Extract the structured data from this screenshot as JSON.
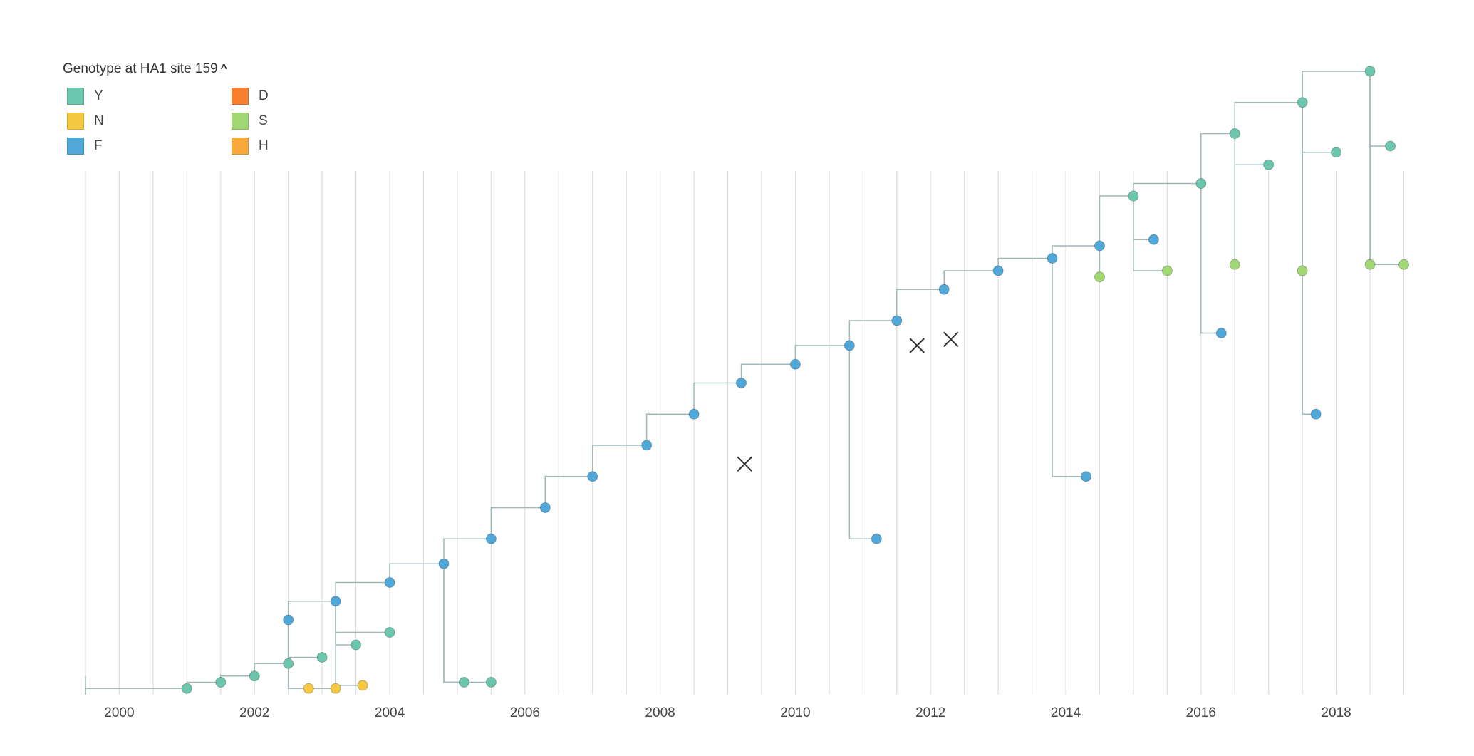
{
  "legend": {
    "title": "Genotype at HA1 site 159",
    "toggle_icon": "chevron-up-icon",
    "items": [
      {
        "label": "Y",
        "color": "#6cc6ae"
      },
      {
        "label": "N",
        "color": "#f5c842"
      },
      {
        "label": "F",
        "color": "#4fa8d8"
      },
      {
        "label": "D",
        "color": "#f97e2e"
      },
      {
        "label": "S",
        "color": "#a2d873"
      },
      {
        "label": "H",
        "color": "#fba83b"
      }
    ]
  },
  "chart_data": {
    "type": "scatter",
    "title": "",
    "xlabel": "",
    "ylabel": "",
    "x_ticks": [
      "2000",
      "2002",
      "2004",
      "2006",
      "2008",
      "2010",
      "2012",
      "2014",
      "2016",
      "2018"
    ],
    "xlim": [
      1999.5,
      2019.1
    ],
    "grid": true,
    "branch_color": "#9fb8b8",
    "series": [
      {
        "name": "Y",
        "points": [
          [
            2001.0,
            0.01
          ],
          [
            2001.5,
            0.02
          ],
          [
            2002.0,
            0.03
          ],
          [
            2002.5,
            0.05
          ],
          [
            2003.0,
            0.06
          ],
          [
            2003.5,
            0.08
          ],
          [
            2004.0,
            0.1
          ],
          [
            2005.1,
            0.02
          ],
          [
            2005.5,
            0.02
          ],
          [
            2015.0,
            0.8
          ],
          [
            2016.0,
            0.82
          ],
          [
            2017.0,
            0.85
          ],
          [
            2018.0,
            0.87
          ],
          [
            2018.8,
            0.88
          ],
          [
            2016.5,
            0.9
          ],
          [
            2017.5,
            0.95
          ],
          [
            2018.5,
            1.0
          ]
        ]
      },
      {
        "name": "N",
        "points": [
          [
            2002.8,
            0.01
          ],
          [
            2003.2,
            0.01
          ],
          [
            2003.6,
            0.015
          ]
        ]
      },
      {
        "name": "F",
        "points": [
          [
            2002.5,
            0.12
          ],
          [
            2003.2,
            0.15
          ],
          [
            2004.0,
            0.18
          ],
          [
            2004.8,
            0.21
          ],
          [
            2005.5,
            0.25
          ],
          [
            2006.3,
            0.3
          ],
          [
            2007.0,
            0.35
          ],
          [
            2007.8,
            0.4
          ],
          [
            2008.5,
            0.45
          ],
          [
            2009.2,
            0.5
          ],
          [
            2010.0,
            0.53
          ],
          [
            2010.8,
            0.56
          ],
          [
            2011.5,
            0.6
          ],
          [
            2012.2,
            0.65
          ],
          [
            2013.0,
            0.68
          ],
          [
            2013.8,
            0.7
          ],
          [
            2014.5,
            0.72
          ],
          [
            2015.3,
            0.73
          ],
          [
            2017.7,
            0.45
          ],
          [
            2014.3,
            0.35
          ],
          [
            2016.3,
            0.58
          ],
          [
            2011.2,
            0.25
          ]
        ]
      },
      {
        "name": "S",
        "points": [
          [
            2014.5,
            0.67
          ],
          [
            2015.5,
            0.68
          ],
          [
            2016.5,
            0.69
          ],
          [
            2017.5,
            0.68
          ],
          [
            2018.5,
            0.69
          ],
          [
            2019.0,
            0.69
          ]
        ]
      },
      {
        "name": "D",
        "points": []
      },
      {
        "name": "H",
        "points": []
      }
    ],
    "markers": [
      {
        "label": "",
        "x": 2009.25,
        "y": 0.37
      },
      {
        "label": "",
        "x": 2011.8,
        "y": 0.56
      },
      {
        "label": "",
        "x": 2012.3,
        "y": 0.57
      }
    ]
  }
}
